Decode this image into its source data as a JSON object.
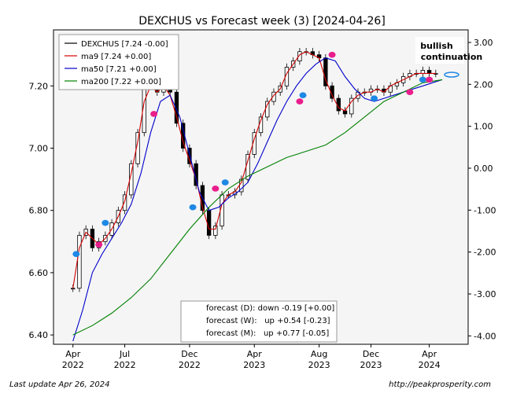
{
  "title": "DEXCHUS vs Forecast week (3)  [2024-04-26]",
  "footer": {
    "left": "Last update Apr 26, 2024",
    "right": "http://peakprosperity.com"
  },
  "annotation": {
    "line1": "bullish",
    "line2": "continuation",
    "color": "#1e88e5"
  },
  "legend": [
    {
      "label": "DEXCHUS [7.24 -0.00]",
      "color": "#000000"
    },
    {
      "label": "ma9 [7.24 +0.00]",
      "color": "#d40000"
    },
    {
      "label": "ma50 [7.21 +0.00]",
      "color": "#0000cc"
    },
    {
      "label": "ma200 [7.22 +0.00]",
      "color": "#008000"
    }
  ],
  "forecast_box": [
    "forecast (D): down -0.19 [+0.00]",
    "forecast (W):   up +0.54 [-0.23]",
    "forecast (M):   up +0.77 [-0.05]"
  ],
  "chart_data": {
    "type": "line",
    "title": "DEXCHUS vs Forecast week (3)  [2024-04-26]",
    "x_ticks": [
      {
        "t": 0,
        "l1": "Apr",
        "l2": "2022"
      },
      {
        "t": 16,
        "l1": "Jul",
        "l2": "2022"
      },
      {
        "t": 36,
        "l1": "Dec",
        "l2": "2022"
      },
      {
        "t": 56,
        "l1": "Apr",
        "l2": "2023"
      },
      {
        "t": 76,
        "l1": "Aug",
        "l2": "2023"
      },
      {
        "t": 92,
        "l1": "Dec",
        "l2": "2023"
      },
      {
        "t": 110,
        "l1": "Apr",
        "l2": "2024"
      }
    ],
    "xlim": [
      -6,
      122
    ],
    "ylim": [
      6.37,
      7.38
    ],
    "y_ticks": [
      6.4,
      6.6,
      6.8,
      7.0,
      7.2
    ],
    "y2lim": [
      -4.2,
      3.3
    ],
    "y2_ticks": [
      -4.0,
      -3.0,
      -2.0,
      -1.0,
      0.0,
      1.0,
      2.0,
      3.0
    ],
    "grid": false,
    "legend_position": "top-left",
    "series": [
      {
        "name": "DEXCHUS",
        "color": "#000000",
        "style": "candlestick",
        "x": [
          0,
          2,
          4,
          6,
          8,
          10,
          12,
          14,
          16,
          18,
          20,
          22,
          24,
          26,
          28,
          30,
          32,
          34,
          36,
          38,
          40,
          42,
          44,
          46,
          48,
          50,
          52,
          54,
          56,
          58,
          60,
          62,
          64,
          66,
          68,
          70,
          72,
          74,
          76,
          78,
          80,
          82,
          84,
          86,
          88,
          90,
          92,
          94,
          96,
          98,
          100,
          102,
          104,
          106,
          108,
          110,
          112
        ],
        "values": [
          6.55,
          6.72,
          6.74,
          6.68,
          6.7,
          6.72,
          6.76,
          6.8,
          6.85,
          6.95,
          7.05,
          7.2,
          7.21,
          7.18,
          7.23,
          7.18,
          7.08,
          7.0,
          6.95,
          6.88,
          6.8,
          6.72,
          6.75,
          6.85,
          6.85,
          6.86,
          6.9,
          6.98,
          7.05,
          7.1,
          7.15,
          7.18,
          7.2,
          7.26,
          7.28,
          7.31,
          7.31,
          7.3,
          7.29,
          7.2,
          7.16,
          7.12,
          7.11,
          7.16,
          7.18,
          7.18,
          7.19,
          7.19,
          7.18,
          7.2,
          7.21,
          7.23,
          7.24,
          7.24,
          7.25,
          7.24,
          7.24
        ]
      },
      {
        "name": "ma9",
        "color": "#d40000",
        "x": [
          0,
          2,
          4,
          6,
          8,
          10,
          12,
          14,
          16,
          18,
          20,
          22,
          24,
          26,
          28,
          30,
          32,
          34,
          36,
          38,
          40,
          42,
          44,
          46,
          48,
          50,
          52,
          54,
          56,
          58,
          60,
          62,
          64,
          66,
          68,
          70,
          72,
          74,
          76,
          78,
          80,
          82,
          84,
          86,
          88,
          90,
          92,
          94,
          96,
          98,
          100,
          102,
          104,
          106,
          108,
          110,
          112
        ],
        "values": [
          6.55,
          6.68,
          6.73,
          6.71,
          6.69,
          6.71,
          6.74,
          6.78,
          6.83,
          6.92,
          7.02,
          7.15,
          7.2,
          7.18,
          7.2,
          7.17,
          7.1,
          7.02,
          6.96,
          6.9,
          6.81,
          6.74,
          6.74,
          6.82,
          6.85,
          6.86,
          6.89,
          6.96,
          7.03,
          7.09,
          7.14,
          7.17,
          7.19,
          7.24,
          7.27,
          7.3,
          7.31,
          7.3,
          7.29,
          7.22,
          7.17,
          7.13,
          7.12,
          7.15,
          7.17,
          7.18,
          7.18,
          7.19,
          7.18,
          7.2,
          7.21,
          7.22,
          7.23,
          7.24,
          7.24,
          7.24,
          7.24
        ]
      },
      {
        "name": "ma50",
        "color": "#0000cc",
        "x": [
          0,
          3,
          6,
          9,
          12,
          15,
          18,
          21,
          24,
          27,
          30,
          33,
          36,
          39,
          42,
          45,
          48,
          51,
          54,
          57,
          60,
          63,
          66,
          69,
          72,
          75,
          78,
          81,
          84,
          87,
          90,
          93,
          96,
          99,
          102,
          105,
          108,
          111,
          114
        ],
        "values": [
          6.38,
          6.48,
          6.6,
          6.66,
          6.71,
          6.76,
          6.82,
          6.92,
          7.05,
          7.15,
          7.17,
          7.1,
          6.98,
          6.86,
          6.8,
          6.81,
          6.84,
          6.86,
          6.89,
          6.95,
          7.02,
          7.09,
          7.15,
          7.2,
          7.24,
          7.27,
          7.29,
          7.28,
          7.23,
          7.19,
          7.16,
          7.15,
          7.16,
          7.17,
          7.18,
          7.19,
          7.2,
          7.21,
          7.22
        ]
      },
      {
        "name": "ma200",
        "color": "#008000",
        "x": [
          0,
          6,
          12,
          18,
          24,
          30,
          36,
          42,
          48,
          54,
          60,
          66,
          72,
          78,
          84,
          90,
          96,
          102,
          108,
          114
        ],
        "values": [
          6.4,
          6.43,
          6.47,
          6.52,
          6.58,
          6.66,
          6.74,
          6.81,
          6.87,
          6.91,
          6.94,
          6.97,
          6.99,
          7.01,
          7.05,
          7.1,
          7.15,
          7.18,
          7.21,
          7.22
        ]
      }
    ],
    "markers": [
      {
        "x": 1,
        "y": 6.66,
        "color": "#1e88e5"
      },
      {
        "x": 8,
        "y": 6.69,
        "color": "#e91e8c"
      },
      {
        "x": 10,
        "y": 6.76,
        "color": "#1e88e5"
      },
      {
        "x": 25,
        "y": 7.11,
        "color": "#e91e8c"
      },
      {
        "x": 37,
        "y": 6.81,
        "color": "#1e88e5"
      },
      {
        "x": 44,
        "y": 6.87,
        "color": "#e91e8c"
      },
      {
        "x": 47,
        "y": 6.89,
        "color": "#1e88e5"
      },
      {
        "x": 70,
        "y": 7.15,
        "color": "#e91e8c"
      },
      {
        "x": 71,
        "y": 7.17,
        "color": "#1e88e5"
      },
      {
        "x": 80,
        "y": 7.3,
        "color": "#e91e8c"
      },
      {
        "x": 93,
        "y": 7.16,
        "color": "#1e88e5"
      },
      {
        "x": 104,
        "y": 7.18,
        "color": "#e91e8c"
      },
      {
        "x": 108,
        "y": 7.22,
        "color": "#1e88e5"
      },
      {
        "x": 110,
        "y": 7.22,
        "color": "#e91e8c"
      }
    ]
  }
}
